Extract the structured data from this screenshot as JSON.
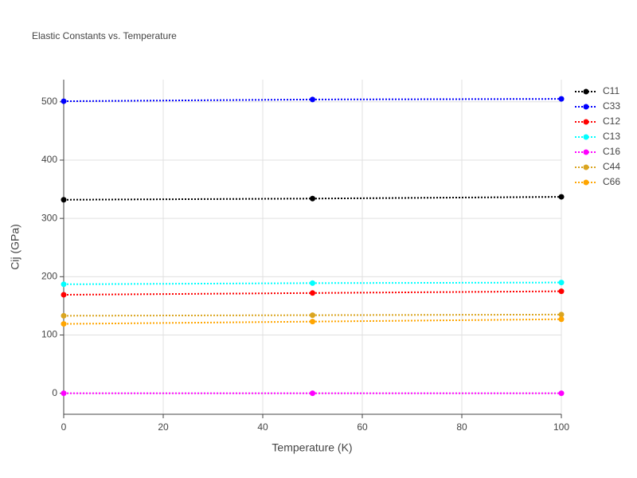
{
  "chart_data": {
    "type": "line",
    "title": "Elastic Constants vs. Temperature",
    "x_label": "Temperature (K)",
    "y_label": "Cij (GPa)",
    "x": [
      0,
      50,
      100
    ],
    "series": [
      {
        "name": "C11",
        "color": "#000000",
        "values": [
          332,
          334,
          337
        ]
      },
      {
        "name": "C33",
        "color": "#0000ff",
        "values": [
          501,
          504,
          505
        ]
      },
      {
        "name": "C12",
        "color": "#ff0000",
        "values": [
          169,
          172,
          175
        ]
      },
      {
        "name": "C13",
        "color": "#00ffff",
        "values": [
          187,
          189,
          190
        ]
      },
      {
        "name": "C16",
        "color": "#ff00ff",
        "values": [
          0,
          0,
          0
        ]
      },
      {
        "name": "C44",
        "color": "#daa520",
        "values": [
          133,
          134,
          135
        ]
      },
      {
        "name": "C66",
        "color": "#ffa500",
        "values": [
          119,
          123,
          127
        ]
      }
    ],
    "xlim": [
      0,
      100
    ],
    "xticks": [
      0,
      20,
      40,
      60,
      80,
      100
    ],
    "ylim": [
      -36,
      538
    ],
    "yticks": [
      0,
      100,
      200,
      300,
      400,
      500
    ],
    "grid": true,
    "legend": "right"
  }
}
